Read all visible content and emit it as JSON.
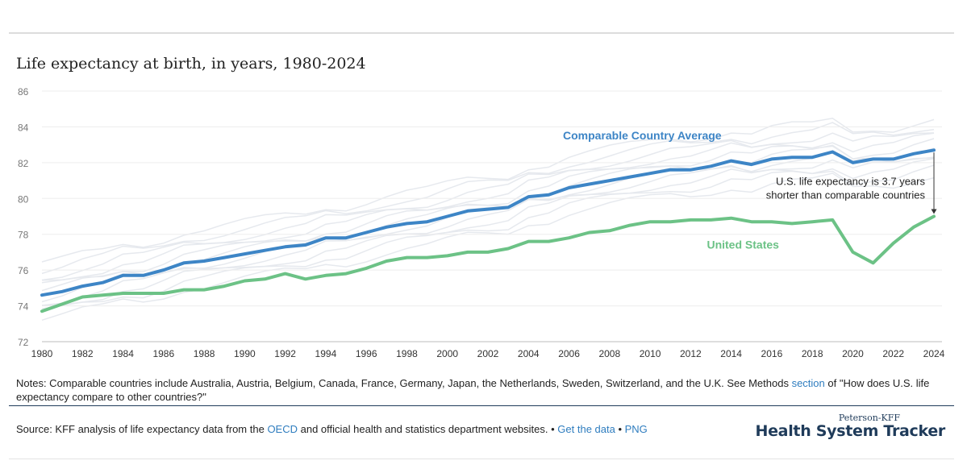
{
  "chart_data": {
    "type": "line",
    "title": "Life expectancy at birth, in years, 1980-2024",
    "xlim": [
      1980,
      2024
    ],
    "ylim": [
      72,
      86
    ],
    "y_ticks": [
      "72",
      "74",
      "76",
      "78",
      "80",
      "82",
      "84",
      "86"
    ],
    "x_ticks": [
      "1980",
      "1982",
      "1984",
      "1986",
      "1988",
      "1990",
      "1992",
      "1994",
      "1996",
      "1998",
      "2000",
      "2002",
      "2004",
      "2006",
      "2008",
      "2010",
      "2012",
      "2014",
      "2016",
      "2018",
      "2020",
      "2022",
      "2024"
    ],
    "grid": "horizontal",
    "x": [
      1980,
      1981,
      1982,
      1983,
      1984,
      1985,
      1986,
      1987,
      1988,
      1989,
      1990,
      1991,
      1992,
      1993,
      1994,
      1995,
      1996,
      1997,
      1998,
      1999,
      2000,
      2001,
      2002,
      2003,
      2004,
      2005,
      2006,
      2007,
      2008,
      2009,
      2010,
      2011,
      2012,
      2013,
      2014,
      2015,
      2016,
      2017,
      2018,
      2019,
      2020,
      2021,
      2022,
      2023,
      2024
    ],
    "series": [
      {
        "name": "Comparable Country Average",
        "color": "#3d85c6",
        "values": [
          74.6,
          74.8,
          75.1,
          75.3,
          75.7,
          75.7,
          76.0,
          76.4,
          76.5,
          76.7,
          76.9,
          77.1,
          77.3,
          77.4,
          77.8,
          77.8,
          78.1,
          78.4,
          78.6,
          78.7,
          79.0,
          79.3,
          79.4,
          79.5,
          80.1,
          80.2,
          80.6,
          80.8,
          81.0,
          81.2,
          81.4,
          81.6,
          81.6,
          81.8,
          82.1,
          81.9,
          82.2,
          82.3,
          82.3,
          82.6,
          82.0,
          82.2,
          82.2,
          82.5,
          82.7
        ]
      },
      {
        "name": "United States",
        "color": "#6cc286",
        "values": [
          73.7,
          74.1,
          74.5,
          74.6,
          74.7,
          74.7,
          74.7,
          74.9,
          74.9,
          75.1,
          75.4,
          75.5,
          75.8,
          75.5,
          75.7,
          75.8,
          76.1,
          76.5,
          76.7,
          76.7,
          76.8,
          77.0,
          77.0,
          77.2,
          77.6,
          77.6,
          77.8,
          78.1,
          78.2,
          78.5,
          78.7,
          78.7,
          78.8,
          78.8,
          78.9,
          78.7,
          78.7,
          78.6,
          78.7,
          78.8,
          77.0,
          76.4,
          77.5,
          78.4,
          79.0
        ]
      }
    ],
    "background_series_color": "#e6e9ee",
    "annotations": [
      "U.S. life expectancy is 3.7 years",
      "shorter than comparable countries"
    ]
  },
  "notes": {
    "before": "Notes: Comparable countries include Australia, Austria, Belgium, Canada, France, Germany, Japan, the Netherlands, Sweden, Switzerland, and the U.K. See Methods ",
    "link": "section",
    "after": " of \"How does U.S. life expectancy compare to other countries?\""
  },
  "source": {
    "before": "Source: KFF analysis of life expectancy data from the ",
    "link_oecd": "OECD",
    "middle": " and official health and statistics department websites.",
    "bullet1": " • ",
    "link_data": "Get the data",
    "bullet2": " • ",
    "link_png": "PNG"
  },
  "brand": {
    "small": "Peterson-KFF",
    "big": "Health System Tracker"
  },
  "colors": {
    "link": "#2f7dbf",
    "navy": "#1f3b5a"
  }
}
